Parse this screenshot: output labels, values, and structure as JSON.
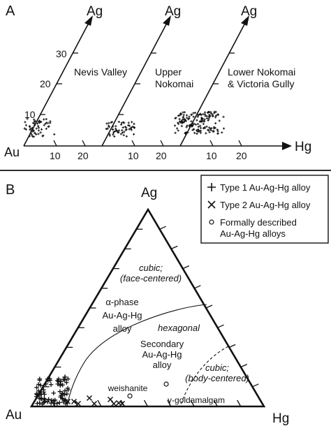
{
  "panel_a": {
    "label": "A",
    "apex_labels": [
      "Ag",
      "Ag",
      "Ag"
    ],
    "origin_label": "Au",
    "axis_label_right": "Hg",
    "y_ticks": [
      "10",
      "20",
      "30"
    ],
    "x_ticks": [
      "10",
      "20"
    ],
    "diagrams": [
      {
        "title_lines": [
          "Nevis Valley"
        ]
      },
      {
        "title_lines": [
          "Upper",
          "Nokomai"
        ]
      },
      {
        "title_lines": [
          "Lower Nokomai",
          "& Victoria Gully"
        ]
      }
    ]
  },
  "panel_b": {
    "label": "B",
    "apex_top": "Ag",
    "apex_left": "Au",
    "apex_right": "Hg",
    "fields": {
      "cubic_fc_line1": "cubic;",
      "cubic_fc_line2": "(face-centered)",
      "alpha_line1": "α-phase",
      "alpha_line2": "Au-Ag-Hg",
      "alpha_line3": "alloy",
      "hexagonal": "hexagonal",
      "secondary_line1": "Secondary",
      "secondary_line2": "Au-Ag-Hg",
      "secondary_line3": "alloy",
      "cubic_bc_line1": "cubic;",
      "cubic_bc_line2": "(body-centered)",
      "weishanite": "weishanite",
      "goldamalgam": "γ-goldamalgam"
    },
    "legend": [
      {
        "symbol": "plus",
        "label_lines": [
          "Type 1 Au-Ag-Hg alloy"
        ]
      },
      {
        "symbol": "cross",
        "label_lines": [
          "Type 2 Au-Ag-Hg alloy"
        ]
      },
      {
        "symbol": "circle",
        "label_lines": [
          "Formally described",
          "Au-Ag-Hg alloys"
        ]
      }
    ]
  }
}
